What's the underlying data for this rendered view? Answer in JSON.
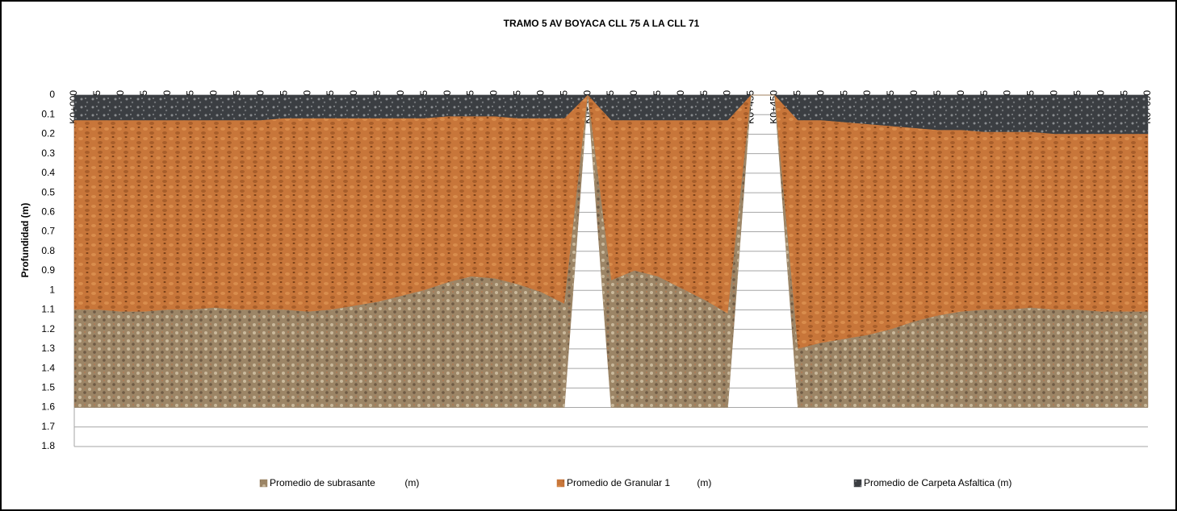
{
  "chart_data": {
    "type": "stacked_area",
    "title": "TRAMO 5 AV BOYACA CLL 75 A LA CLL 71",
    "y_label": "Profundidad (m)",
    "categories": [
      "K0+000",
      "K0+015",
      "K0+030",
      "K0+045",
      "K0+060",
      "K0+075",
      "K0+090",
      "K0+105",
      "K0+120",
      "K0+135",
      "K0+150",
      "K0+165",
      "K0+180",
      "K0+195",
      "K0+210",
      "K0+225",
      "K0+240",
      "K0+255",
      "K0+270",
      "K0+285",
      "K0+300",
      "K0+315",
      "K0+330",
      "K0+345",
      "K0+360",
      "K0+375",
      "K0+390",
      "K0+405",
      "K0+420",
      "K0+435",
      "K0+450",
      "K0+465",
      "K0+480",
      "K0+495",
      "K0+510",
      "K0+525",
      "K0+540",
      "K0+555",
      "K0+570",
      "K0+585",
      "K0+600",
      "K0+615",
      "K0+630",
      "K0+645",
      "K0+660",
      "K0+675",
      "K0+690"
    ],
    "series": [
      {
        "name": "Promedio de Carpeta Asfaltica (m)",
        "color": "#3b3e42",
        "values": [
          0.13,
          0.13,
          0.13,
          0.13,
          0.13,
          0.13,
          0.13,
          0.13,
          0.13,
          0.12,
          0.12,
          0.12,
          0.12,
          0.12,
          0.12,
          0.12,
          0.11,
          0.11,
          0.11,
          0.12,
          0.12,
          0.12,
          0,
          0.13,
          0.13,
          0.13,
          0.13,
          0.13,
          0.13,
          0,
          0,
          0.13,
          0.13,
          0.14,
          0.15,
          0.16,
          0.17,
          0.18,
          0.18,
          0.19,
          0.19,
          0.19,
          0.2,
          0.2,
          0.2,
          0.2,
          0.2
        ]
      },
      {
        "name": "Promedio de Granular 1          (m)",
        "color": "#c8763a",
        "values": [
          0.97,
          0.97,
          0.98,
          0.98,
          0.97,
          0.97,
          0.96,
          0.97,
          0.97,
          0.98,
          0.99,
          0.98,
          0.96,
          0.94,
          0.91,
          0.88,
          0.85,
          0.82,
          0.83,
          0.85,
          0.89,
          0.95,
          0,
          0.82,
          0.77,
          0.8,
          0.86,
          0.92,
          0.99,
          0,
          0,
          1.17,
          1.14,
          1.11,
          1.08,
          1.04,
          0.99,
          0.95,
          0.93,
          0.91,
          0.91,
          0.9,
          0.9,
          0.9,
          0.91,
          0.91,
          0.91
        ]
      },
      {
        "name": "Promedio de subrasante           (m)",
        "color": "#9c8566",
        "values": [
          0.5,
          0.5,
          0.49,
          0.49,
          0.5,
          0.5,
          0.51,
          0.5,
          0.5,
          0.5,
          0.49,
          0.5,
          0.52,
          0.54,
          0.57,
          0.6,
          0.64,
          0.67,
          0.66,
          0.63,
          0.59,
          0.53,
          0,
          0.65,
          0.7,
          0.67,
          0.61,
          0.55,
          0.48,
          0,
          0,
          0.3,
          0.33,
          0.35,
          0.37,
          0.4,
          0.44,
          0.47,
          0.49,
          0.5,
          0.5,
          0.51,
          0.5,
          0.5,
          0.49,
          0.49,
          0.49
        ]
      }
    ],
    "stack_order": [
      0,
      1,
      2
    ],
    "legend_order": [
      2,
      1,
      0
    ],
    "ylim": [
      0,
      1.8
    ],
    "y_inverted": true,
    "yticks": [
      0,
      0.1,
      0.2,
      0.3,
      0.4,
      0.5,
      0.6,
      0.7,
      0.8,
      0.9,
      1,
      1.1,
      1.2,
      1.3,
      1.4,
      1.5,
      1.6,
      1.7,
      1.8
    ],
    "grid": true,
    "legend": "bottom"
  }
}
